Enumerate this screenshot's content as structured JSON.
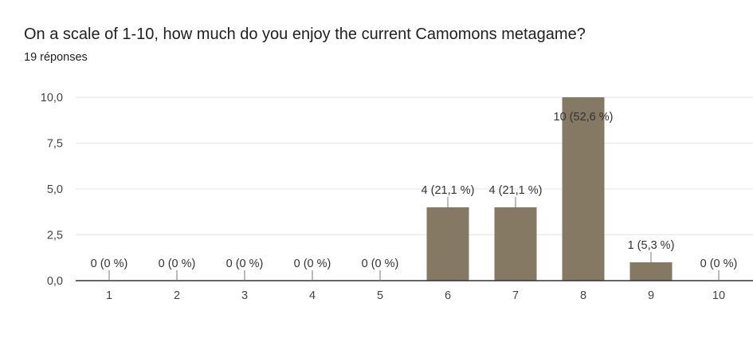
{
  "question": "On a scale of 1-10, how much do you enjoy the current Camomons metagame?",
  "responses": "19 réponses",
  "chart_data": {
    "type": "bar",
    "categories": [
      "1",
      "2",
      "3",
      "4",
      "5",
      "6",
      "7",
      "8",
      "9",
      "10"
    ],
    "values": [
      0,
      0,
      0,
      0,
      0,
      4,
      4,
      10,
      1,
      0
    ],
    "data_labels": [
      "0 (0 %)",
      "0 (0 %)",
      "0 (0 %)",
      "0 (0 %)",
      "0 (0 %)",
      "4 (21,1 %)",
      "4 (21,1 %)",
      "10 (52,6 %)",
      "1 (5,3 %)",
      "0 (0 %)"
    ],
    "y_ticks": [
      "0,0",
      "2,5",
      "5,0",
      "7,5",
      "10,0"
    ],
    "y_tick_values": [
      0,
      2.5,
      5,
      7.5,
      10
    ],
    "ylim": [
      0,
      10
    ],
    "grid": true,
    "bar_color": "#857964"
  }
}
